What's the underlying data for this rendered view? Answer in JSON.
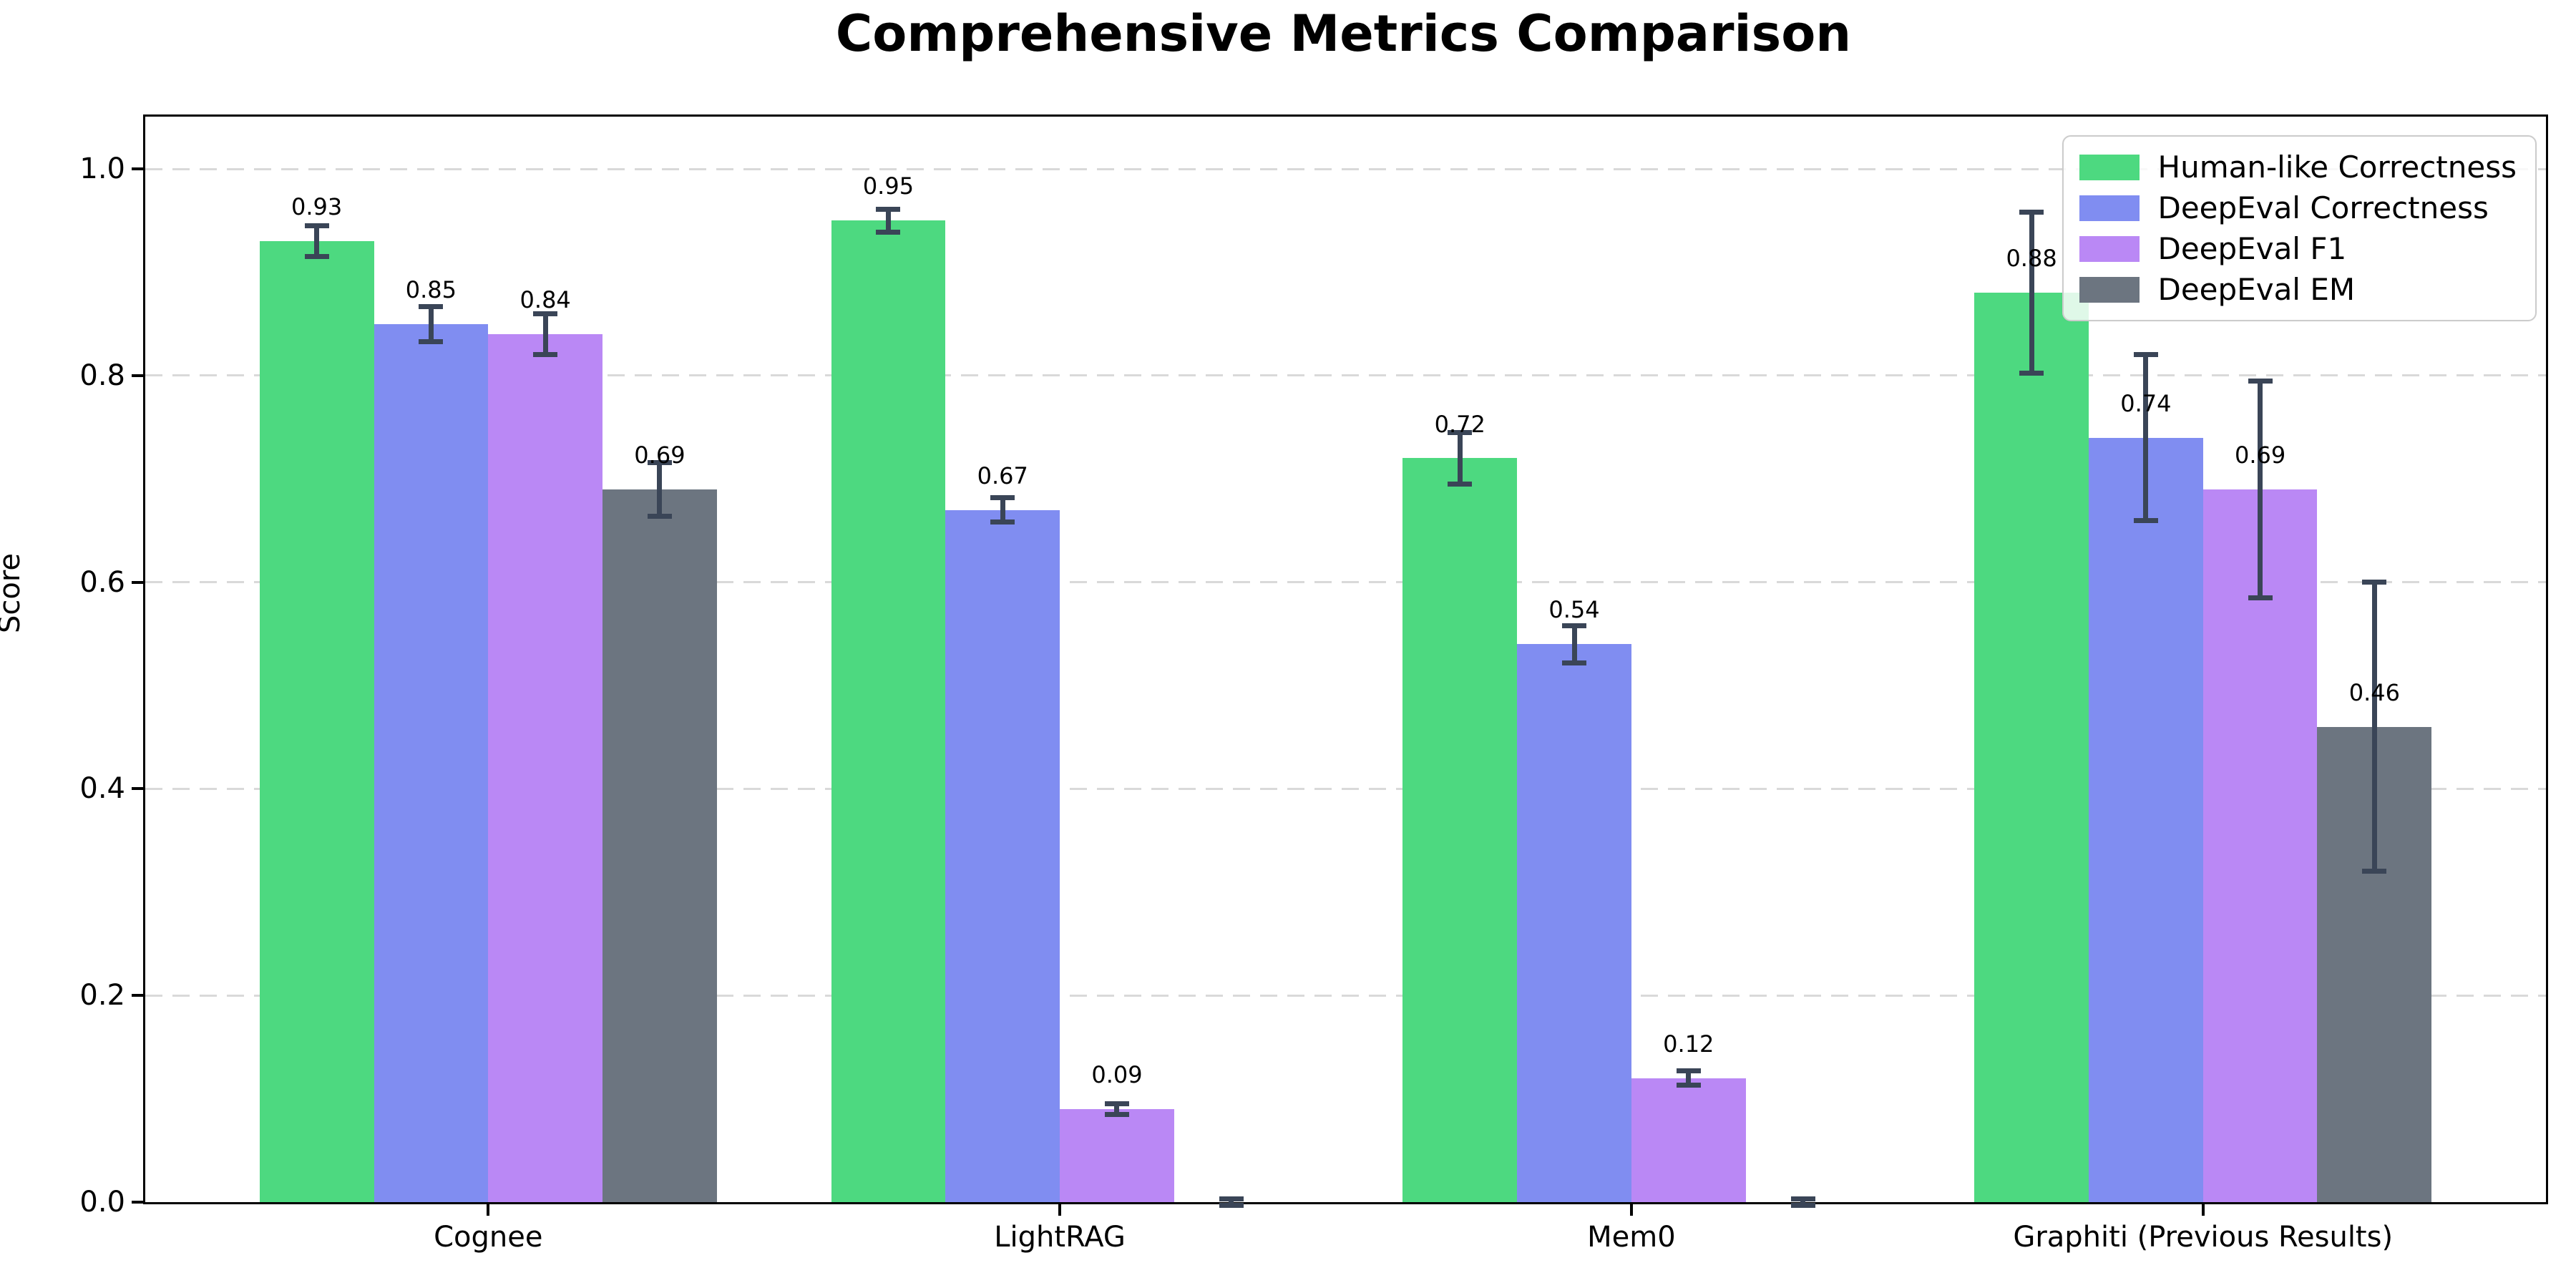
{
  "chart_data": {
    "type": "bar",
    "title": "Comprehensive Metrics Comparison",
    "xlabel": "",
    "ylabel": "Score",
    "categories": [
      "Cognee",
      "LightRAG",
      "Mem0",
      "Graphiti (Previous Results)"
    ],
    "series": [
      {
        "name": "Human-like Correctness",
        "color": "#4dd980",
        "values": [
          0.93,
          0.95,
          0.72,
          0.88
        ],
        "errors": [
          0.015,
          0.011,
          0.025,
          0.078
        ],
        "labels": [
          "0.93",
          "0.95",
          "0.72",
          "0.88"
        ]
      },
      {
        "name": "DeepEval Correctness",
        "color": "#808df1",
        "values": [
          0.85,
          0.67,
          0.54,
          0.74
        ],
        "errors": [
          0.017,
          0.012,
          0.018,
          0.08
        ],
        "labels": [
          "0.85",
          "0.67",
          "0.54",
          "0.74"
        ]
      },
      {
        "name": "DeepEval F1",
        "color": "#ba88f5",
        "values": [
          0.84,
          0.09,
          0.12,
          0.69
        ],
        "errors": [
          0.02,
          0.005,
          0.007,
          0.105
        ],
        "labels": [
          "0.84",
          "0.09",
          "0.12",
          "0.69"
        ]
      },
      {
        "name": "DeepEval EM",
        "color": "#6c7580",
        "values": [
          0.69,
          0.0,
          0.0,
          0.46
        ],
        "errors": [
          0.026,
          0.003,
          0.003,
          0.14
        ],
        "labels": [
          "0.69",
          "",
          "",
          "0.46"
        ]
      }
    ],
    "yticks": {
      "values": [
        0.0,
        0.2,
        0.4,
        0.6,
        0.8,
        1.0
      ],
      "labels": [
        "0.0",
        "0.2",
        "0.4",
        "0.6",
        "0.8",
        "1.0"
      ]
    },
    "ylim": [
      0.0,
      1.0506
    ],
    "bar_width_units": 0.2,
    "xlim_units": [
      -0.6,
      3.6
    ],
    "legend_position": "upper right",
    "grid": "horizontal dashed",
    "error_bar_color": "#3a4557",
    "label_offset_units": 0.02
  }
}
